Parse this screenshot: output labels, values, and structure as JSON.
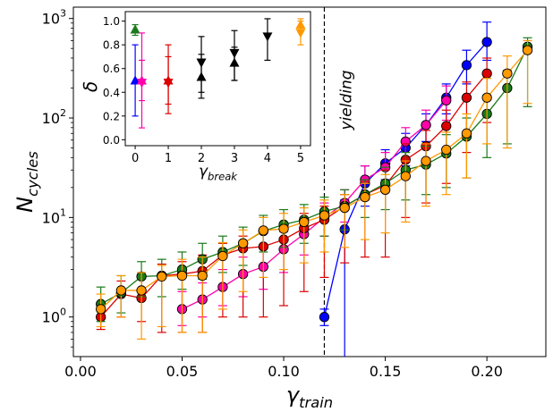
{
  "chart_data": [
    {
      "type": "scatter",
      "xlabel_main": "γ",
      "xlabel_sub": "train",
      "ylabel_main": "N",
      "ylabel_sub": "cycles",
      "yscale": "log",
      "xlim": [
        -0.0035,
        0.229
      ],
      "ylim": [
        0.4,
        1300
      ],
      "x_ticks": [
        0.0,
        0.05,
        0.1,
        0.15,
        0.2
      ],
      "x_tick_labels": [
        "0.00",
        "0.05",
        "0.10",
        "0.15",
        "0.20"
      ],
      "y_ticks": [
        1,
        10,
        100,
        1000
      ],
      "y_tick_base": "10",
      "y_tick_exponents": [
        "0",
        "1",
        "2",
        "3"
      ],
      "annotation": {
        "text": "yielding",
        "x": 0.12
      },
      "series": [
        {
          "color": "#0000ff",
          "points": [
            {
              "x": 0.12,
              "y": 1.0,
              "lo": 0.82,
              "hi": 1.2
            },
            {
              "x": 0.13,
              "y": 7.6,
              "lo": 0.3,
              "hi": 15
            },
            {
              "x": 0.14,
              "y": 22,
              "lo": 13,
              "hi": 33
            },
            {
              "x": 0.15,
              "y": 35,
              "lo": 24,
              "hi": 48
            },
            {
              "x": 0.16,
              "y": 50,
              "lo": 33,
              "hi": 70
            },
            {
              "x": 0.17,
              "y": 85,
              "lo": 58,
              "hi": 110
            },
            {
              "x": 0.18,
              "y": 160,
              "lo": 110,
              "hi": 220
            },
            {
              "x": 0.19,
              "y": 340,
              "lo": 220,
              "hi": 480
            },
            {
              "x": 0.2,
              "y": 580,
              "lo": 380,
              "hi": 920
            }
          ]
        },
        {
          "color": "#ff00aa",
          "points": [
            {
              "x": 0.05,
              "y": 1.2,
              "lo": 0.82,
              "hi": 1.8
            },
            {
              "x": 0.06,
              "y": 1.5,
              "lo": 1.0,
              "hi": 2.2
            },
            {
              "x": 0.07,
              "y": 2.0,
              "lo": 1.3,
              "hi": 3.0
            },
            {
              "x": 0.08,
              "y": 2.7,
              "lo": 1.6,
              "hi": 4.0
            },
            {
              "x": 0.09,
              "y": 3.2,
              "lo": 1.9,
              "hi": 5.0
            },
            {
              "x": 0.1,
              "y": 4.8,
              "lo": 2.8,
              "hi": 7.2
            },
            {
              "x": 0.11,
              "y": 6.8,
              "lo": 4.2,
              "hi": 10
            },
            {
              "x": 0.12,
              "y": 10,
              "lo": 6.5,
              "hi": 14
            },
            {
              "x": 0.13,
              "y": 14,
              "lo": 9,
              "hi": 19
            },
            {
              "x": 0.14,
              "y": 24,
              "lo": 15,
              "hi": 33
            },
            {
              "x": 0.15,
              "y": 32,
              "lo": 20,
              "hi": 45
            },
            {
              "x": 0.16,
              "y": 58,
              "lo": 36,
              "hi": 80
            },
            {
              "x": 0.17,
              "y": 85,
              "lo": 55,
              "hi": 120
            },
            {
              "x": 0.18,
              "y": 150,
              "lo": 95,
              "hi": 210
            }
          ]
        },
        {
          "color": "#dd0000",
          "points": [
            {
              "x": 0.01,
              "y": 1.0,
              "lo": 0.75,
              "hi": 1.4
            },
            {
              "x": 0.02,
              "y": 1.7,
              "lo": 1.0,
              "hi": 2.3
            },
            {
              "x": 0.03,
              "y": 1.55,
              "lo": 0.9,
              "hi": 2.6
            },
            {
              "x": 0.04,
              "y": 2.6,
              "lo": 0.7,
              "hi": 3.4
            },
            {
              "x": 0.05,
              "y": 2.7,
              "lo": 0.7,
              "hi": 3.6
            },
            {
              "x": 0.06,
              "y": 2.9,
              "lo": 0.7,
              "hi": 4.2
            },
            {
              "x": 0.07,
              "y": 4.2,
              "lo": 1.0,
              "hi": 5.5
            },
            {
              "x": 0.08,
              "y": 4.9,
              "lo": 1.0,
              "hi": 6.5
            },
            {
              "x": 0.09,
              "y": 5.1,
              "lo": 1.0,
              "hi": 7.2
            },
            {
              "x": 0.1,
              "y": 6.0,
              "lo": 1.3,
              "hi": 8.5
            },
            {
              "x": 0.11,
              "y": 7.8,
              "lo": 1.8,
              "hi": 11
            },
            {
              "x": 0.12,
              "y": 9.5,
              "lo": 2.5,
              "hi": 13
            },
            {
              "x": 0.13,
              "y": 13,
              "lo": 3.5,
              "hi": 17
            },
            {
              "x": 0.14,
              "y": 17,
              "lo": 4.0,
              "hi": 23
            },
            {
              "x": 0.15,
              "y": 21,
              "lo": 4.0,
              "hi": 30
            },
            {
              "x": 0.16,
              "y": 38,
              "lo": 10,
              "hi": 55
            },
            {
              "x": 0.17,
              "y": 52,
              "lo": 14,
              "hi": 75
            },
            {
              "x": 0.18,
              "y": 83,
              "lo": 22,
              "hi": 120
            },
            {
              "x": 0.19,
              "y": 160,
              "lo": 45,
              "hi": 230
            },
            {
              "x": 0.2,
              "y": 280,
              "lo": 90,
              "hi": 400
            }
          ]
        },
        {
          "color": "#1a7a1a",
          "points": [
            {
              "x": 0.01,
              "y": 1.35,
              "lo": 0.9,
              "hi": 2.0
            },
            {
              "x": 0.02,
              "y": 1.75,
              "lo": 1.1,
              "hi": 2.6
            },
            {
              "x": 0.03,
              "y": 2.55,
              "lo": 1.6,
              "hi": 3.6
            },
            {
              "x": 0.04,
              "y": 2.6,
              "lo": 1.6,
              "hi": 3.8
            },
            {
              "x": 0.05,
              "y": 3.0,
              "lo": 1.9,
              "hi": 4.5
            },
            {
              "x": 0.06,
              "y": 3.8,
              "lo": 2.4,
              "hi": 5.5
            },
            {
              "x": 0.07,
              "y": 4.5,
              "lo": 2.8,
              "hi": 6.5
            },
            {
              "x": 0.08,
              "y": 5.5,
              "lo": 3.3,
              "hi": 8.0
            },
            {
              "x": 0.09,
              "y": 7.3,
              "lo": 4.5,
              "hi": 10.5
            },
            {
              "x": 0.1,
              "y": 8.5,
              "lo": 5.0,
              "hi": 12
            },
            {
              "x": 0.11,
              "y": 9.5,
              "lo": 5.5,
              "hi": 13.5
            },
            {
              "x": 0.12,
              "y": 11.5,
              "lo": 6.5,
              "hi": 16
            },
            {
              "x": 0.13,
              "y": 13,
              "lo": 7.5,
              "hi": 19
            },
            {
              "x": 0.14,
              "y": 17,
              "lo": 10,
              "hi": 24
            },
            {
              "x": 0.15,
              "y": 22,
              "lo": 12,
              "hi": 32
            },
            {
              "x": 0.16,
              "y": 30,
              "lo": 15,
              "hi": 45
            },
            {
              "x": 0.17,
              "y": 34,
              "lo": 17,
              "hi": 52
            },
            {
              "x": 0.18,
              "y": 44,
              "lo": 20,
              "hi": 68
            },
            {
              "x": 0.19,
              "y": 65,
              "lo": 25,
              "hi": 100
            },
            {
              "x": 0.2,
              "y": 110,
              "lo": 40,
              "hi": 170
            },
            {
              "x": 0.21,
              "y": 200,
              "lo": 55,
              "hi": 300
            },
            {
              "x": 0.22,
              "y": 520,
              "lo": 130,
              "hi": 640
            }
          ]
        },
        {
          "color": "#ff9900",
          "points": [
            {
              "x": 0.01,
              "y": 1.2,
              "lo": 0.8,
              "hi": 1.7
            },
            {
              "x": 0.02,
              "y": 1.85,
              "lo": 1.0,
              "hi": 2.6
            },
            {
              "x": 0.03,
              "y": 1.85,
              "lo": 0.6,
              "hi": 2.8
            },
            {
              "x": 0.04,
              "y": 2.55,
              "lo": 0.8,
              "hi": 3.3
            },
            {
              "x": 0.05,
              "y": 2.6,
              "lo": 0.7,
              "hi": 3.8
            },
            {
              "x": 0.06,
              "y": 2.6,
              "lo": 0.7,
              "hi": 4.0
            },
            {
              "x": 0.07,
              "y": 4.1,
              "lo": 1.2,
              "hi": 5.6
            },
            {
              "x": 0.08,
              "y": 5.5,
              "lo": 1.8,
              "hi": 7.5
            },
            {
              "x": 0.09,
              "y": 7.4,
              "lo": 2.5,
              "hi": 10
            },
            {
              "x": 0.1,
              "y": 7.7,
              "lo": 3.0,
              "hi": 11
            },
            {
              "x": 0.11,
              "y": 9.0,
              "lo": 3.5,
              "hi": 12.5
            },
            {
              "x": 0.12,
              "y": 10.5,
              "lo": 4.5,
              "hi": 15
            },
            {
              "x": 0.13,
              "y": 12.5,
              "lo": 5.0,
              "hi": 17
            },
            {
              "x": 0.14,
              "y": 16,
              "lo": 6.0,
              "hi": 22
            },
            {
              "x": 0.15,
              "y": 19,
              "lo": 7.0,
              "hi": 27
            },
            {
              "x": 0.16,
              "y": 26,
              "lo": 9.0,
              "hi": 37
            },
            {
              "x": 0.17,
              "y": 37,
              "lo": 13,
              "hi": 55
            },
            {
              "x": 0.18,
              "y": 48,
              "lo": 17,
              "hi": 72
            },
            {
              "x": 0.19,
              "y": 70,
              "lo": 25,
              "hi": 110
            },
            {
              "x": 0.2,
              "y": 160,
              "lo": 55,
              "hi": 250
            },
            {
              "x": 0.21,
              "y": 280,
              "lo": 50,
              "hi": 420
            },
            {
              "x": 0.22,
              "y": 480,
              "lo": 140,
              "hi": 600
            }
          ]
        }
      ]
    },
    {
      "type": "scatter",
      "inset": true,
      "xlabel_main": "γ",
      "xlabel_sub": "break",
      "ylabel": "δ",
      "xlim": [
        -0.3,
        5.3
      ],
      "ylim": [
        -0.05,
        1.08
      ],
      "x_ticks": [
        0,
        1,
        2,
        3,
        4,
        5
      ],
      "x_tick_labels": [
        "0",
        "1",
        "2",
        "3",
        "4",
        "5"
      ],
      "y_ticks": [
        0.0,
        0.2,
        0.4,
        0.6,
        0.8,
        1.0
      ],
      "y_tick_labels": [
        "0.0",
        "0.2",
        "0.4",
        "0.6",
        "0.8",
        "1.0"
      ],
      "points": [
        {
          "x": 0.0,
          "y": 0.93,
          "lo": 0.88,
          "hi": 0.97,
          "color": "#1a7a1a",
          "marker": "triangle-up"
        },
        {
          "x": 0.0,
          "y": 0.5,
          "lo": 0.2,
          "hi": 0.8,
          "color": "#0000ff",
          "marker": "triangle-up"
        },
        {
          "x": 0.2,
          "y": 0.5,
          "lo": 0.33,
          "hi": 0.67,
          "color": "#ff00aa",
          "marker": "triangle-up"
        },
        {
          "x": 0.2,
          "y": 0.48,
          "lo": 0.1,
          "hi": 0.9,
          "color": "#ff00aa",
          "marker": "triangle-down"
        },
        {
          "x": 1.0,
          "y": 0.5,
          "lo": 0.3,
          "hi": 0.7,
          "color": "#dd0000",
          "marker": "triangle-up"
        },
        {
          "x": 1.0,
          "y": 0.48,
          "lo": 0.22,
          "hi": 0.8,
          "color": "#dd0000",
          "marker": "triangle-down"
        },
        {
          "x": 2.0,
          "y": 0.53,
          "lo": 0.35,
          "hi": 0.72,
          "color": "#000000",
          "marker": "triangle-up"
        },
        {
          "x": 2.0,
          "y": 0.65,
          "lo": 0.4,
          "hi": 0.87,
          "color": "#000000",
          "marker": "triangle-down"
        },
        {
          "x": 3.0,
          "y": 0.65,
          "lo": 0.5,
          "hi": 0.78,
          "color": "#000000",
          "marker": "triangle-up"
        },
        {
          "x": 3.0,
          "y": 0.73,
          "lo": 0.5,
          "hi": 0.92,
          "color": "#000000",
          "marker": "triangle-down"
        },
        {
          "x": 4.0,
          "y": 0.87,
          "lo": 0.67,
          "hi": 1.02,
          "color": "#000000",
          "marker": "triangle-down"
        },
        {
          "x": 5.0,
          "y": 0.97,
          "lo": 0.92,
          "hi": 1.02,
          "color": "#ff9900",
          "marker": "triangle-up"
        },
        {
          "x": 5.0,
          "y": 0.9,
          "lo": 0.8,
          "hi": 1.0,
          "color": "#ff9900",
          "marker": "triangle-down"
        }
      ]
    }
  ]
}
